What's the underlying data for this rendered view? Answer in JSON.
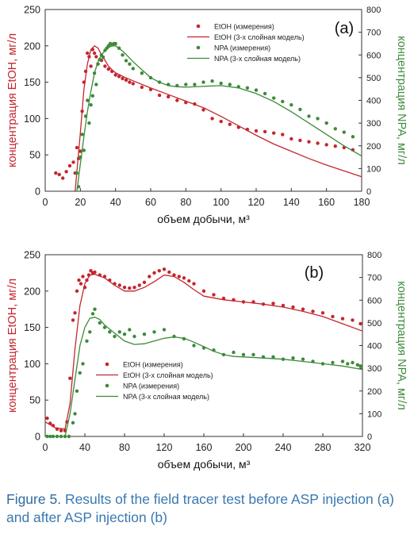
{
  "caption": {
    "label": "Figure 5.",
    "text": "Results of the field tracer test before ASP injection (a) and after ASP injection (b)"
  },
  "colors": {
    "etoh": "#c4262e",
    "npa": "#3c8a3a",
    "axis": "#333333",
    "caption": "#3a78b0"
  },
  "chart_data": [
    {
      "type": "scatter",
      "panel_label": "(a)",
      "xlabel": "объем добычи, м³",
      "ylabel": "концентрация EtOH, мг/л",
      "y2label": "концентрация NPA, мг/л",
      "xlim": [
        0,
        180
      ],
      "ylim": [
        0,
        250
      ],
      "y2lim": [
        0,
        800
      ],
      "xticks": [
        0,
        20,
        40,
        60,
        80,
        100,
        120,
        140,
        160,
        180
      ],
      "yticks": [
        0,
        50,
        100,
        150,
        200,
        250
      ],
      "y2ticks": [
        0,
        100,
        200,
        300,
        400,
        500,
        600,
        700,
        800
      ],
      "grid": false,
      "legend_position": "top-right",
      "series": [
        {
          "name": "EtOH (измерения)",
          "kind": "points",
          "axis": "left",
          "color": "#c4262e",
          "x": [
            6,
            8,
            10,
            12,
            14,
            16,
            17,
            18,
            19,
            20,
            21,
            22,
            23,
            24,
            25,
            26,
            27,
            28,
            29,
            30,
            32,
            34,
            36,
            38,
            40,
            42,
            44,
            46,
            48,
            50,
            55,
            60,
            65,
            70,
            75,
            80,
            85,
            90,
            95,
            100,
            105,
            110,
            115,
            120,
            125,
            130,
            135,
            140,
            145,
            150,
            155,
            160,
            165,
            170,
            175
          ],
          "y": [
            25,
            23,
            18,
            27,
            35,
            40,
            25,
            60,
            45,
            55,
            110,
            150,
            165,
            190,
            185,
            172,
            195,
            190,
            185,
            175,
            180,
            172,
            168,
            165,
            160,
            158,
            155,
            153,
            150,
            148,
            143,
            140,
            132,
            130,
            125,
            122,
            120,
            112,
            100,
            96,
            92,
            88,
            85,
            83,
            82,
            80,
            78,
            72,
            70,
            68,
            66,
            64,
            62,
            60,
            57
          ]
        },
        {
          "name": "EtOH (3-х слойная модель)",
          "kind": "line",
          "axis": "left",
          "color": "#c4262e",
          "x": [
            17,
            20,
            22,
            24,
            26,
            28,
            30,
            32,
            34,
            36,
            38,
            40,
            45,
            50,
            60,
            70,
            80,
            90,
            100,
            110,
            120,
            130,
            140,
            150,
            160,
            170,
            180
          ],
          "y": [
            0,
            80,
            140,
            175,
            195,
            200,
            197,
            188,
            180,
            172,
            167,
            163,
            157,
            152,
            142,
            133,
            124,
            115,
            103,
            90,
            77,
            65,
            55,
            45,
            36,
            28,
            20
          ]
        },
        {
          "name": "NPA (измерения)",
          "kind": "points",
          "axis": "right",
          "color": "#3c8a3a",
          "x": [
            18,
            19,
            20,
            21,
            22,
            23,
            24,
            25,
            26,
            27,
            28,
            29,
            30,
            31,
            32,
            33,
            34,
            35,
            36,
            37,
            38,
            39,
            40,
            42,
            44,
            46,
            48,
            50,
            55,
            60,
            65,
            70,
            75,
            80,
            85,
            90,
            95,
            100,
            105,
            110,
            115,
            120,
            125,
            130,
            135,
            140,
            145,
            150,
            155,
            160,
            165,
            170,
            175
          ],
          "y": [
            80,
            20,
            150,
            250,
            180,
            330,
            400,
            300,
            380,
            420,
            520,
            470,
            560,
            580,
            600,
            590,
            620,
            630,
            640,
            650,
            645,
            650,
            650,
            630,
            600,
            575,
            560,
            540,
            520,
            500,
            480,
            470,
            465,
            470,
            470,
            480,
            485,
            475,
            470,
            460,
            455,
            445,
            430,
            410,
            395,
            380,
            360,
            330,
            320,
            300,
            275,
            260,
            240
          ]
        },
        {
          "name": "NPA (3-х слойная модель)",
          "kind": "line",
          "axis": "right",
          "color": "#3c8a3a",
          "x": [
            18,
            20,
            22,
            24,
            26,
            28,
            30,
            32,
            34,
            36,
            38,
            40,
            42,
            45,
            50,
            55,
            60,
            65,
            70,
            75,
            80,
            90,
            100,
            110,
            120,
            130,
            140,
            150,
            160,
            170,
            180
          ],
          "y": [
            0,
            120,
            240,
            350,
            440,
            520,
            570,
            600,
            620,
            632,
            640,
            640,
            630,
            610,
            570,
            535,
            500,
            480,
            465,
            460,
            458,
            462,
            465,
            455,
            430,
            395,
            350,
            300,
            250,
            200,
            155
          ]
        }
      ]
    },
    {
      "type": "scatter",
      "panel_label": "(b)",
      "xlabel": "объем добычи, м³",
      "ylabel": "концентрация EtOH, мг/л",
      "y2label": "концентрация NPA, мг/л",
      "xlim": [
        0,
        320
      ],
      "ylim": [
        0,
        250
      ],
      "y2lim": [
        0,
        800
      ],
      "xticks": [
        0,
        40,
        80,
        120,
        160,
        200,
        240,
        280,
        320
      ],
      "yticks": [
        0,
        50,
        100,
        150,
        200,
        250
      ],
      "y2ticks": [
        0,
        100,
        200,
        300,
        400,
        500,
        600,
        700,
        800
      ],
      "grid": false,
      "legend_position": "center",
      "series": [
        {
          "name": "EtOH (измерения)",
          "kind": "points",
          "axis": "left",
          "color": "#c4262e",
          "x": [
            2,
            5,
            8,
            12,
            16,
            20,
            22,
            25,
            28,
            30,
            32,
            34,
            36,
            38,
            40,
            42,
            44,
            46,
            48,
            50,
            55,
            60,
            65,
            70,
            75,
            80,
            85,
            90,
            95,
            100,
            105,
            110,
            115,
            120,
            125,
            130,
            135,
            140,
            145,
            150,
            160,
            170,
            180,
            190,
            200,
            210,
            220,
            230,
            240,
            250,
            260,
            270,
            280,
            290,
            300,
            310,
            318
          ],
          "y": [
            25,
            18,
            15,
            10,
            8,
            8,
            20,
            80,
            160,
            170,
            200,
            215,
            210,
            220,
            205,
            215,
            222,
            228,
            225,
            226,
            222,
            220,
            215,
            210,
            208,
            205,
            204,
            205,
            208,
            212,
            220,
            225,
            228,
            230,
            226,
            222,
            220,
            218,
            214,
            210,
            200,
            195,
            190,
            188,
            185,
            185,
            182,
            183,
            180,
            178,
            175,
            172,
            170,
            165,
            162,
            160,
            155
          ]
        },
        {
          "name": "EtOH (3-х слойная модель)",
          "kind": "line",
          "axis": "left",
          "color": "#c4262e",
          "x": [
            0,
            10,
            20,
            25,
            30,
            35,
            40,
            45,
            50,
            60,
            70,
            80,
            90,
            100,
            110,
            120,
            130,
            140,
            150,
            160,
            180,
            200,
            220,
            240,
            260,
            280,
            300,
            320
          ],
          "y": [
            20,
            12,
            10,
            45,
            120,
            180,
            210,
            222,
            223,
            218,
            208,
            200,
            200,
            205,
            213,
            222,
            220,
            212,
            202,
            193,
            188,
            185,
            182,
            178,
            172,
            165,
            155,
            145
          ]
        },
        {
          "name": "NPA (измерения)",
          "kind": "points",
          "axis": "right",
          "color": "#3c8a3a",
          "x": [
            2,
            5,
            8,
            12,
            16,
            20,
            24,
            28,
            30,
            32,
            35,
            38,
            42,
            45,
            48,
            50,
            55,
            60,
            65,
            70,
            75,
            80,
            85,
            90,
            100,
            110,
            120,
            130,
            140,
            150,
            160,
            170,
            180,
            190,
            200,
            210,
            220,
            230,
            240,
            250,
            260,
            270,
            280,
            290,
            300,
            305,
            310,
            315,
            318
          ],
          "y": [
            0,
            0,
            0,
            0,
            0,
            0,
            0,
            60,
            100,
            200,
            280,
            320,
            420,
            460,
            540,
            560,
            500,
            480,
            460,
            440,
            460,
            450,
            470,
            440,
            450,
            460,
            470,
            440,
            430,
            400,
            390,
            380,
            360,
            370,
            360,
            360,
            350,
            350,
            340,
            345,
            340,
            330,
            320,
            325,
            330,
            320,
            325,
            315,
            310
          ]
        },
        {
          "name": "NPA (3-х слойная модель)",
          "kind": "line",
          "axis": "right",
          "color": "#3c8a3a",
          "x": [
            0,
            20,
            25,
            30,
            35,
            40,
            45,
            50,
            55,
            60,
            70,
            80,
            90,
            100,
            110,
            120,
            130,
            140,
            150,
            160,
            170,
            180,
            190,
            200,
            220,
            240,
            260,
            280,
            300,
            320
          ],
          "y": [
            0,
            0,
            100,
            250,
            400,
            480,
            520,
            525,
            515,
            490,
            455,
            420,
            405,
            408,
            420,
            432,
            438,
            432,
            415,
            395,
            375,
            360,
            352,
            350,
            345,
            340,
            330,
            320,
            310,
            295
          ]
        }
      ]
    }
  ]
}
